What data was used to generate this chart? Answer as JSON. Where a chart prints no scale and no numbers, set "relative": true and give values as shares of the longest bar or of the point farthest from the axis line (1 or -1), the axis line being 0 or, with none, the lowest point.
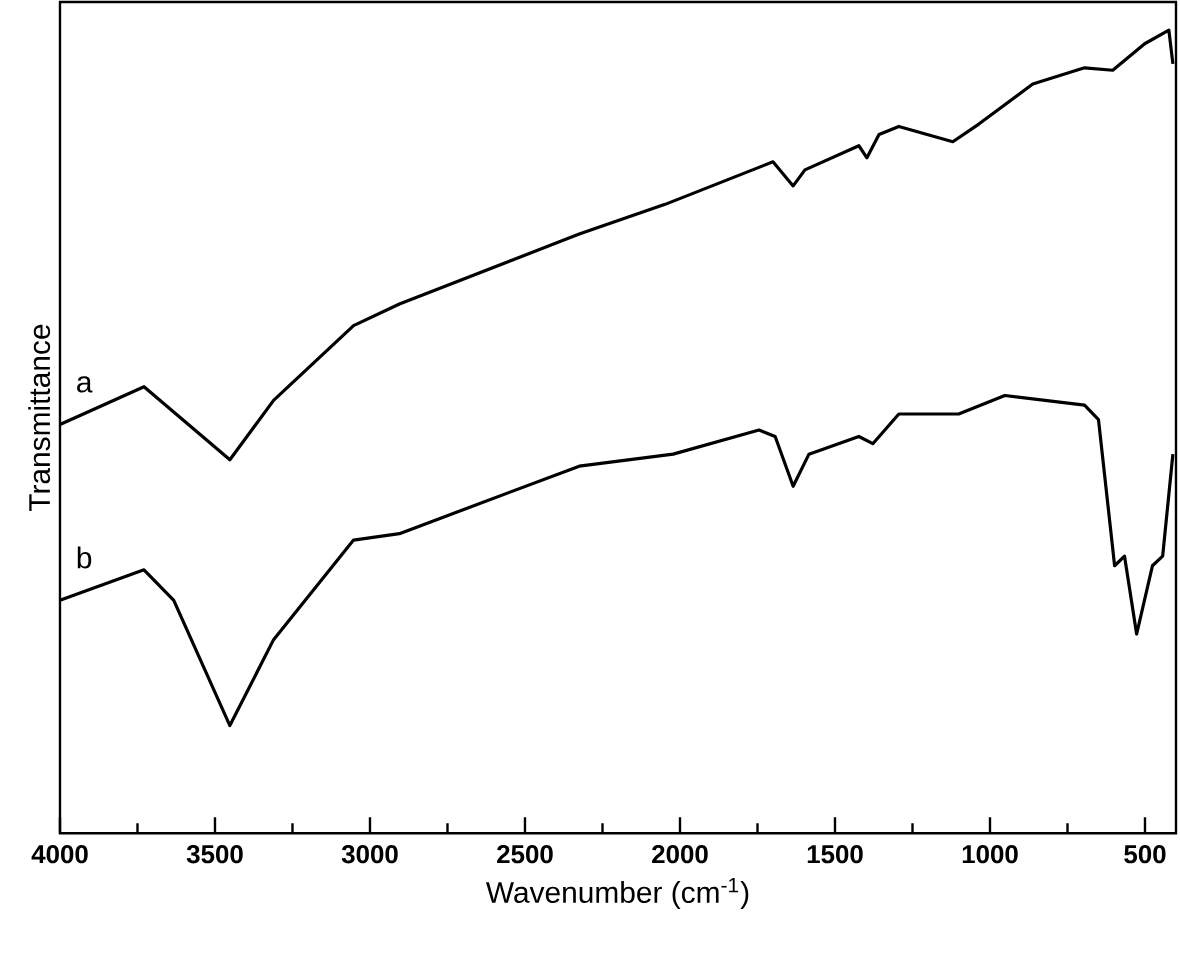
{
  "chart_data": {
    "type": "line",
    "relative": true,
    "xlabel": "Wavenumber (cm$^{-1}$)",
    "ylabel": "Transmittance",
    "xlim": [
      4000,
      400
    ],
    "xticks": [
      4000,
      {
        "value": 3750,
        "label": null
      },
      3500,
      {
        "value": 3250,
        "label": null
      },
      3000,
      {
        "value": 2750,
        "label": null
      },
      2500,
      {
        "value": 2250,
        "label": null
      },
      2000,
      {
        "value": 1750,
        "label": null
      },
      1500,
      {
        "value": 1250,
        "label": null
      },
      1000,
      {
        "value": 750,
        "label": null
      },
      500
    ],
    "legend": false,
    "grid": false,
    "marker": "none",
    "line_style": "solid",
    "series": [
      {
        "name": "a",
        "color": "#000000",
        "x": [
          4000,
          3729,
          3452,
          3311,
          3053,
          2905,
          2325,
          2048,
          1700,
          1635,
          1597,
          1423,
          1397,
          1358,
          1294,
          1120,
          1036,
          862,
          695,
          604,
          501,
          423,
          410
        ],
        "values": [
          0.509,
          0.556,
          0.465,
          0.539,
          0.632,
          0.659,
          0.746,
          0.783,
          0.836,
          0.806,
          0.826,
          0.856,
          0.841,
          0.87,
          0.88,
          0.861,
          0.883,
          0.933,
          0.953,
          0.95,
          0.983,
          1.0,
          0.958
        ]
      },
      {
        "name": "b",
        "color": "#000000",
        "x": [
          4000,
          3729,
          3633,
          3452,
          3311,
          3053,
          2905,
          2325,
          2022,
          1745,
          1693,
          1635,
          1584,
          1423,
          1378,
          1294,
          1101,
          952,
          695,
          650,
          598,
          566,
          527,
          476,
          443,
          410
        ],
        "values": [
          0.29,
          0.328,
          0.29,
          0.134,
          0.241,
          0.365,
          0.373,
          0.457,
          0.472,
          0.502,
          0.494,
          0.432,
          0.472,
          0.494,
          0.485,
          0.522,
          0.522,
          0.545,
          0.533,
          0.515,
          0.333,
          0.345,
          0.248,
          0.333,
          0.345,
          0.472
        ]
      }
    ]
  }
}
